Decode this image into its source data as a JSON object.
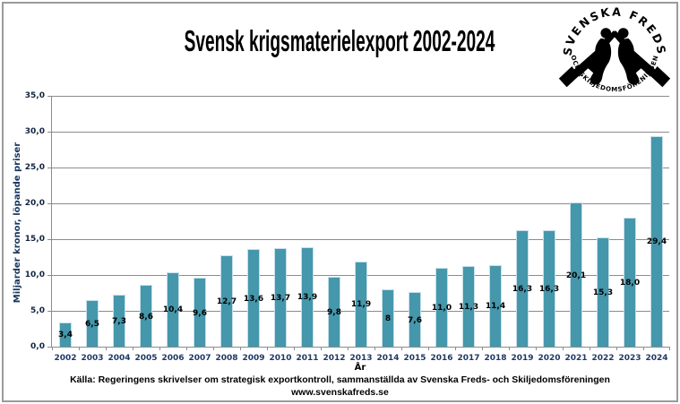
{
  "logo": {
    "top_text": "SVENSKA FREDS",
    "bottom_text": "OCH SKILJEDOMSFÖRENINGEN"
  },
  "chart_data": {
    "type": "bar",
    "title": "Svensk krigsmaterielexport 2002-2024",
    "xlabel": "År",
    "ylabel": "Miljarder kronor, löpande priser",
    "categories": [
      "2002",
      "2003",
      "2004",
      "2005",
      "2006",
      "2007",
      "2008",
      "2009",
      "2010",
      "2011",
      "2012",
      "2013",
      "2014",
      "2015",
      "2016",
      "2017",
      "2018",
      "2019",
      "2020",
      "2021",
      "2022",
      "2023",
      "2024"
    ],
    "values": [
      3.4,
      6.5,
      7.3,
      8.6,
      10.4,
      9.6,
      12.7,
      13.6,
      13.7,
      13.9,
      9.8,
      11.9,
      8,
      7.6,
      11.0,
      11.3,
      11.4,
      16.3,
      16.3,
      20.1,
      15.3,
      18.0,
      29.4
    ],
    "value_labels": [
      "3,4",
      "6,5",
      "7,3",
      "8,6",
      "10,4",
      "9,6",
      "12,7",
      "13,6",
      "13,7",
      "13,9",
      "9,8",
      "11,9",
      "8",
      "7,6",
      "11,0",
      "11,3",
      "11,4",
      "16,3",
      "16,3",
      "20,1",
      "15,3",
      "18,0",
      "29,4"
    ],
    "ylim": [
      0,
      35
    ],
    "ytick_step": 5,
    "ytick_labels": [
      "0,0",
      "5,0",
      "10,0",
      "15,0",
      "20,0",
      "25,0",
      "30,0",
      "35,0"
    ],
    "grid": true,
    "legend": null,
    "bar_color": "#4597AB",
    "bar_border_color": "#C5DEEA",
    "grid_color": "#8C8C8C",
    "category_label_color": "#1F3864",
    "axis_title_color": "#17375E"
  },
  "footer": {
    "source": "Källa: Regeringens skrivelser om strategisk exportkontroll, sammanställda av Svenska Freds- och Skiljedomsföreningen",
    "website": "www.svenskafreds.se"
  }
}
